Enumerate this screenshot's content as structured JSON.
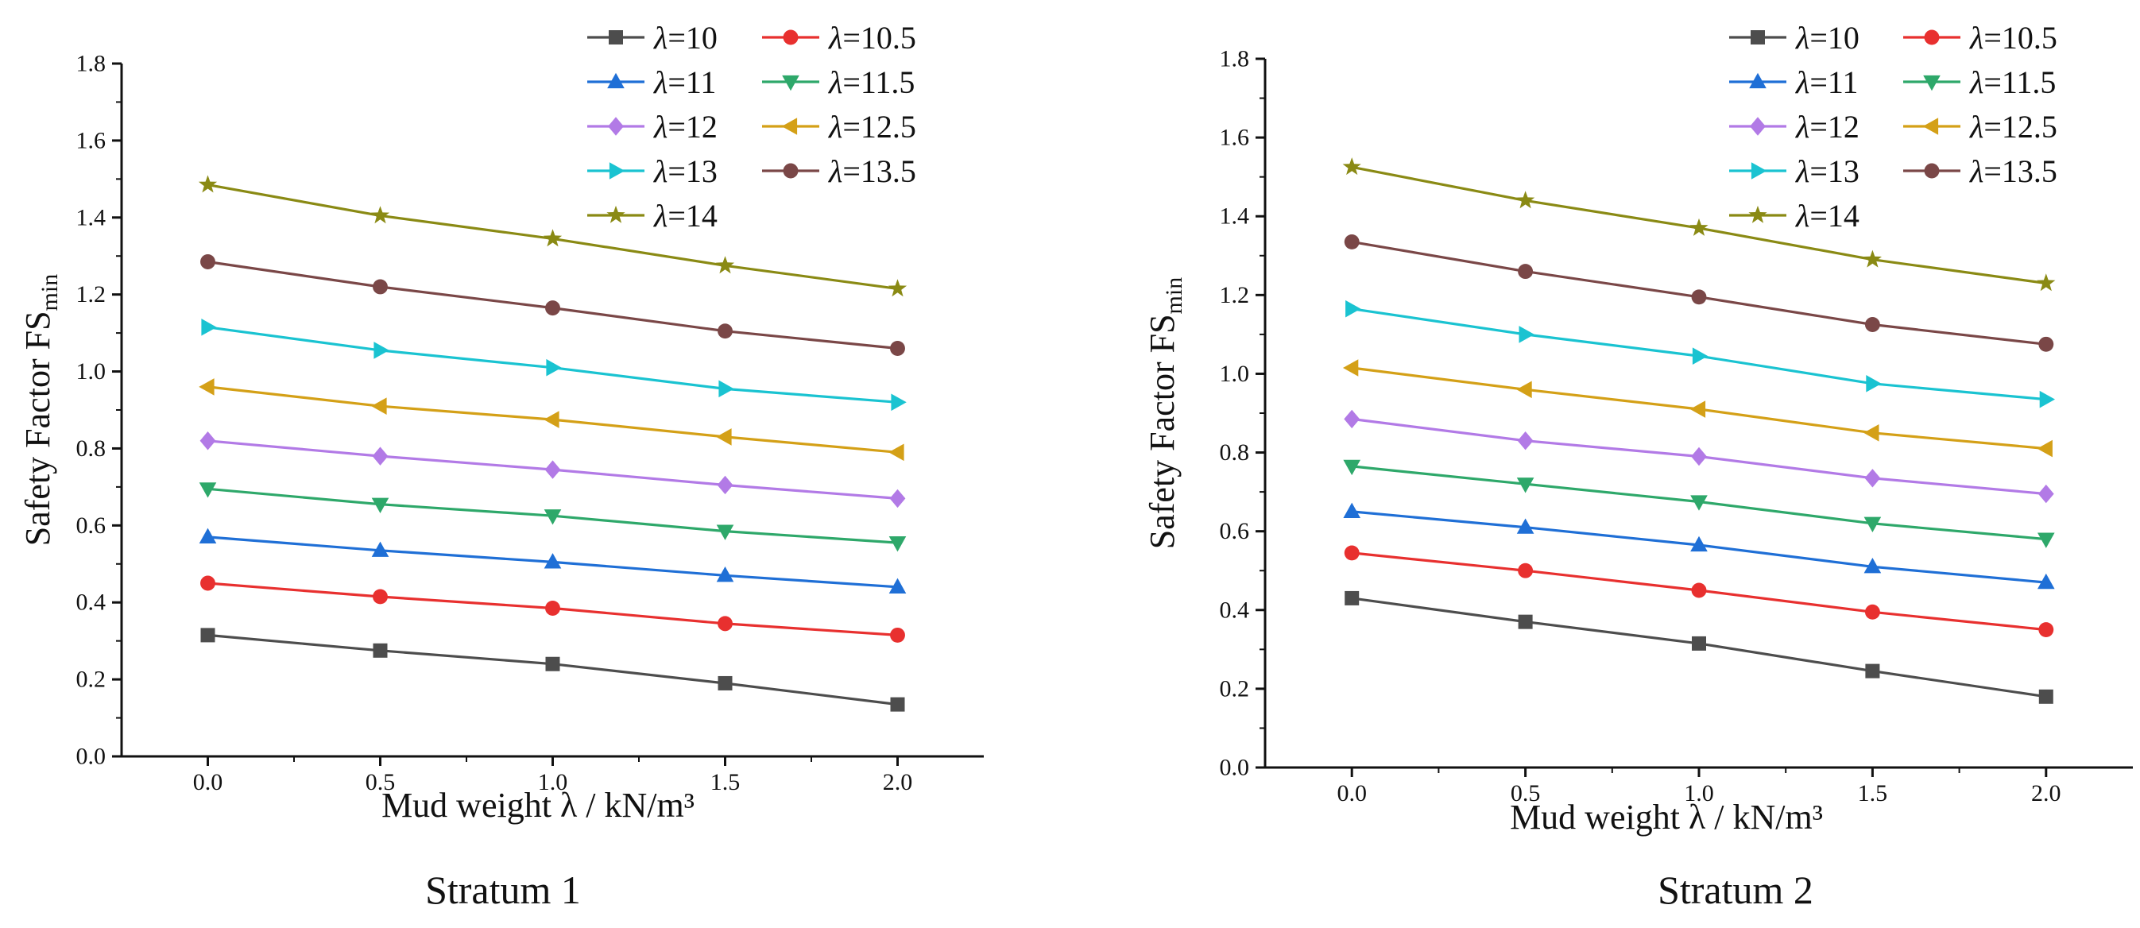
{
  "chart_data": [
    {
      "type": "line",
      "caption": "Stratum 1",
      "xlabel": "Mud weight λ / kN/m³",
      "ylabel_main": "Safety Factor FS",
      "ylabel_sub": "min",
      "x": [
        0.0,
        0.5,
        1.0,
        1.5,
        2.0
      ],
      "x_tick_labels": [
        "0.0",
        "0.5",
        "1.0",
        "1.5",
        "2.0"
      ],
      "xlim": [
        -0.25,
        2.25
      ],
      "y_tick_labels": [
        "0.0",
        "0.2",
        "0.4",
        "0.6",
        "0.8",
        "1.0",
        "1.2",
        "1.4",
        "1.6",
        "1.8"
      ],
      "ylim": [
        0,
        1.8
      ],
      "series": [
        {
          "name": "λ=10",
          "values": [
            0.315,
            0.275,
            0.24,
            0.19,
            0.135
          ]
        },
        {
          "name": "λ=10.5",
          "values": [
            0.45,
            0.415,
            0.385,
            0.345,
            0.315
          ]
        },
        {
          "name": "λ=11",
          "values": [
            0.57,
            0.535,
            0.505,
            0.47,
            0.44
          ]
        },
        {
          "name": "λ=11.5",
          "values": [
            0.695,
            0.655,
            0.625,
            0.585,
            0.555
          ]
        },
        {
          "name": "λ=12",
          "values": [
            0.82,
            0.78,
            0.745,
            0.705,
            0.67
          ]
        },
        {
          "name": "λ=12.5",
          "values": [
            0.96,
            0.91,
            0.875,
            0.83,
            0.79
          ]
        },
        {
          "name": "λ=13",
          "values": [
            1.115,
            1.055,
            1.01,
            0.955,
            0.92
          ]
        },
        {
          "name": "λ=13.5",
          "values": [
            1.285,
            1.22,
            1.165,
            1.105,
            1.06
          ]
        },
        {
          "name": "λ=14",
          "values": [
            1.485,
            1.405,
            1.345,
            1.275,
            1.215
          ]
        }
      ]
    },
    {
      "type": "line",
      "caption": "Stratum 2",
      "xlabel": "Mud weight λ / kN/m³",
      "ylabel_main": "Safety Factor FS",
      "ylabel_sub": "min",
      "x": [
        0.0,
        0.5,
        1.0,
        1.5,
        2.0
      ],
      "x_tick_labels": [
        "0.0",
        "0.5",
        "1.0",
        "1.5",
        "2.0"
      ],
      "xlim": [
        -0.25,
        2.25
      ],
      "y_tick_labels": [
        "0.0",
        "0.2",
        "0.4",
        "0.6",
        "0.8",
        "1.0",
        "1.2",
        "1.4",
        "1.6",
        "1.8"
      ],
      "ylim": [
        0,
        1.8
      ],
      "series": [
        {
          "name": "λ=10",
          "values": [
            0.43,
            0.37,
            0.315,
            0.245,
            0.18
          ]
        },
        {
          "name": "λ=10.5",
          "values": [
            0.545,
            0.5,
            0.45,
            0.395,
            0.35
          ]
        },
        {
          "name": "λ=11",
          "values": [
            0.65,
            0.61,
            0.565,
            0.51,
            0.47
          ]
        },
        {
          "name": "λ=11.5",
          "values": [
            0.765,
            0.72,
            0.675,
            0.62,
            0.58
          ]
        },
        {
          "name": "λ=12",
          "values": [
            0.885,
            0.83,
            0.79,
            0.735,
            0.695
          ]
        },
        {
          "name": "λ=12.5",
          "values": [
            1.015,
            0.96,
            0.91,
            0.85,
            0.81
          ]
        },
        {
          "name": "λ=13",
          "values": [
            1.165,
            1.1,
            1.045,
            0.975,
            0.935
          ]
        },
        {
          "name": "λ=13.5",
          "values": [
            1.335,
            1.26,
            1.195,
            1.125,
            1.075
          ]
        },
        {
          "name": "λ=14",
          "values": [
            1.525,
            1.44,
            1.37,
            1.29,
            1.23
          ]
        }
      ]
    }
  ],
  "series_style": [
    {
      "color": "#4d4d4d",
      "marker": "square"
    },
    {
      "color": "#e8302f",
      "marker": "circle"
    },
    {
      "color": "#1f6fd6",
      "marker": "triangle-up"
    },
    {
      "color": "#2ea86a",
      "marker": "triangle-down"
    },
    {
      "color": "#b27ae6",
      "marker": "diamond"
    },
    {
      "color": "#d4a017",
      "marker": "triangle-left"
    },
    {
      "color": "#1ac3d1",
      "marker": "triangle-right"
    },
    {
      "color": "#7a4747",
      "marker": "circle"
    },
    {
      "color": "#8a8a14",
      "marker": "star"
    }
  ]
}
